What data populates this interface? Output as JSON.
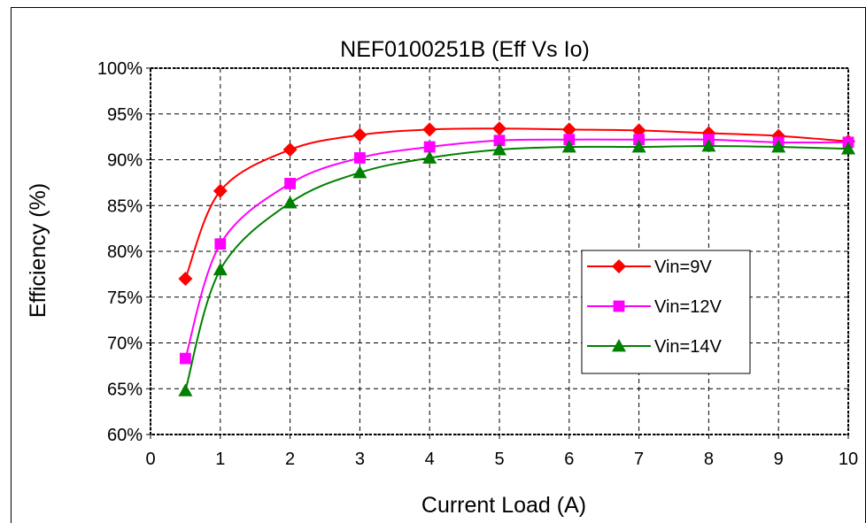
{
  "chart_data": {
    "type": "line",
    "title": "NEF0100251B (Eff Vs Io)",
    "xlabel": "Current Load (A)",
    "ylabel": "Efficiency (%)",
    "xlim": [
      0,
      10
    ],
    "ylim": [
      60,
      100
    ],
    "x_ticks": [
      "0",
      "1",
      "2",
      "3",
      "4",
      "5",
      "6",
      "7",
      "8",
      "9",
      "10"
    ],
    "y_ticks": [
      "60%",
      "65%",
      "70%",
      "75%",
      "80%",
      "85%",
      "90%",
      "95%",
      "100%"
    ],
    "grid": true,
    "legend_position": "right",
    "x": [
      0.5,
      1,
      2,
      3,
      4,
      5,
      6,
      7,
      8,
      9,
      10
    ],
    "series": [
      {
        "name": "Vin=9V",
        "color": "#ff0000",
        "marker": "diamond",
        "values": [
          77.0,
          86.6,
          91.1,
          92.7,
          93.3,
          93.4,
          93.3,
          93.2,
          92.9,
          92.6,
          92.0
        ]
      },
      {
        "name": "Vin=12V",
        "color": "#ff00ff",
        "marker": "square",
        "values": [
          68.3,
          80.8,
          87.4,
          90.2,
          91.4,
          92.1,
          92.2,
          92.2,
          92.2,
          91.9,
          91.9
        ]
      },
      {
        "name": "Vin=14V",
        "color": "#008000",
        "marker": "triangle",
        "values": [
          64.8,
          78.0,
          85.3,
          88.6,
          90.2,
          91.1,
          91.4,
          91.4,
          91.5,
          91.4,
          91.2
        ]
      }
    ]
  }
}
